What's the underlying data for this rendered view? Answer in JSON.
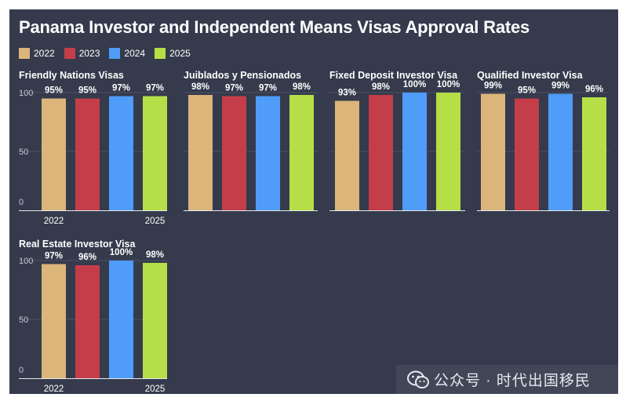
{
  "title": "Panama Investor and Independent Means Visas Approval Rates",
  "legend": [
    {
      "label": "2022",
      "color": "#dcb57b"
    },
    {
      "label": "2023",
      "color": "#c43e49"
    },
    {
      "label": "2024",
      "color": "#4f9cf9"
    },
    {
      "label": "2025",
      "color": "#b6df47"
    }
  ],
  "watermark": "公众号 · 时代出国移民",
  "watermark_icon": "wechat-icon",
  "chart_data": [
    {
      "type": "bar",
      "title": "Friendly Nations Visas",
      "categories": [
        "2022",
        "2023",
        "2024",
        "2025"
      ],
      "values": [
        95,
        95,
        97,
        97
      ],
      "value_labels": [
        "95%",
        "95%",
        "97%",
        "97%"
      ],
      "yticks": [
        "100",
        "50",
        "0"
      ],
      "ylim": [
        0,
        100
      ],
      "xtick_labels": [
        "2022",
        "2025"
      ],
      "grid": true
    },
    {
      "type": "bar",
      "title": "Juiblados y Pensionados",
      "categories": [
        "2022",
        "2023",
        "2024",
        "2025"
      ],
      "values": [
        98,
        97,
        97,
        98
      ],
      "value_labels": [
        "98%",
        "97%",
        "97%",
        "98%"
      ],
      "ylim": [
        0,
        100
      ],
      "grid": true
    },
    {
      "type": "bar",
      "title": "Fixed Deposit Investor Visa",
      "categories": [
        "2022",
        "2023",
        "2024",
        "2025"
      ],
      "values": [
        93,
        98,
        100,
        100
      ],
      "value_labels": [
        "93%",
        "98%",
        "100%",
        "100%"
      ],
      "ylim": [
        0,
        100
      ],
      "grid": true
    },
    {
      "type": "bar",
      "title": "Qualified Investor Visa",
      "categories": [
        "2022",
        "2023",
        "2024",
        "2025"
      ],
      "values": [
        99,
        95,
        99,
        96
      ],
      "value_labels": [
        "99%",
        "95%",
        "99%",
        "96%"
      ],
      "ylim": [
        0,
        100
      ],
      "grid": true
    },
    {
      "type": "bar",
      "title": "Real Estate Investor Visa",
      "categories": [
        "2022",
        "2023",
        "2024",
        "2025"
      ],
      "values": [
        97,
        96,
        100,
        98
      ],
      "value_labels": [
        "97%",
        "96%",
        "100%",
        "98%"
      ],
      "yticks": [
        "100",
        "50",
        "0"
      ],
      "ylim": [
        0,
        100
      ],
      "xtick_labels": [
        "2022",
        "2025"
      ],
      "grid": true
    }
  ]
}
